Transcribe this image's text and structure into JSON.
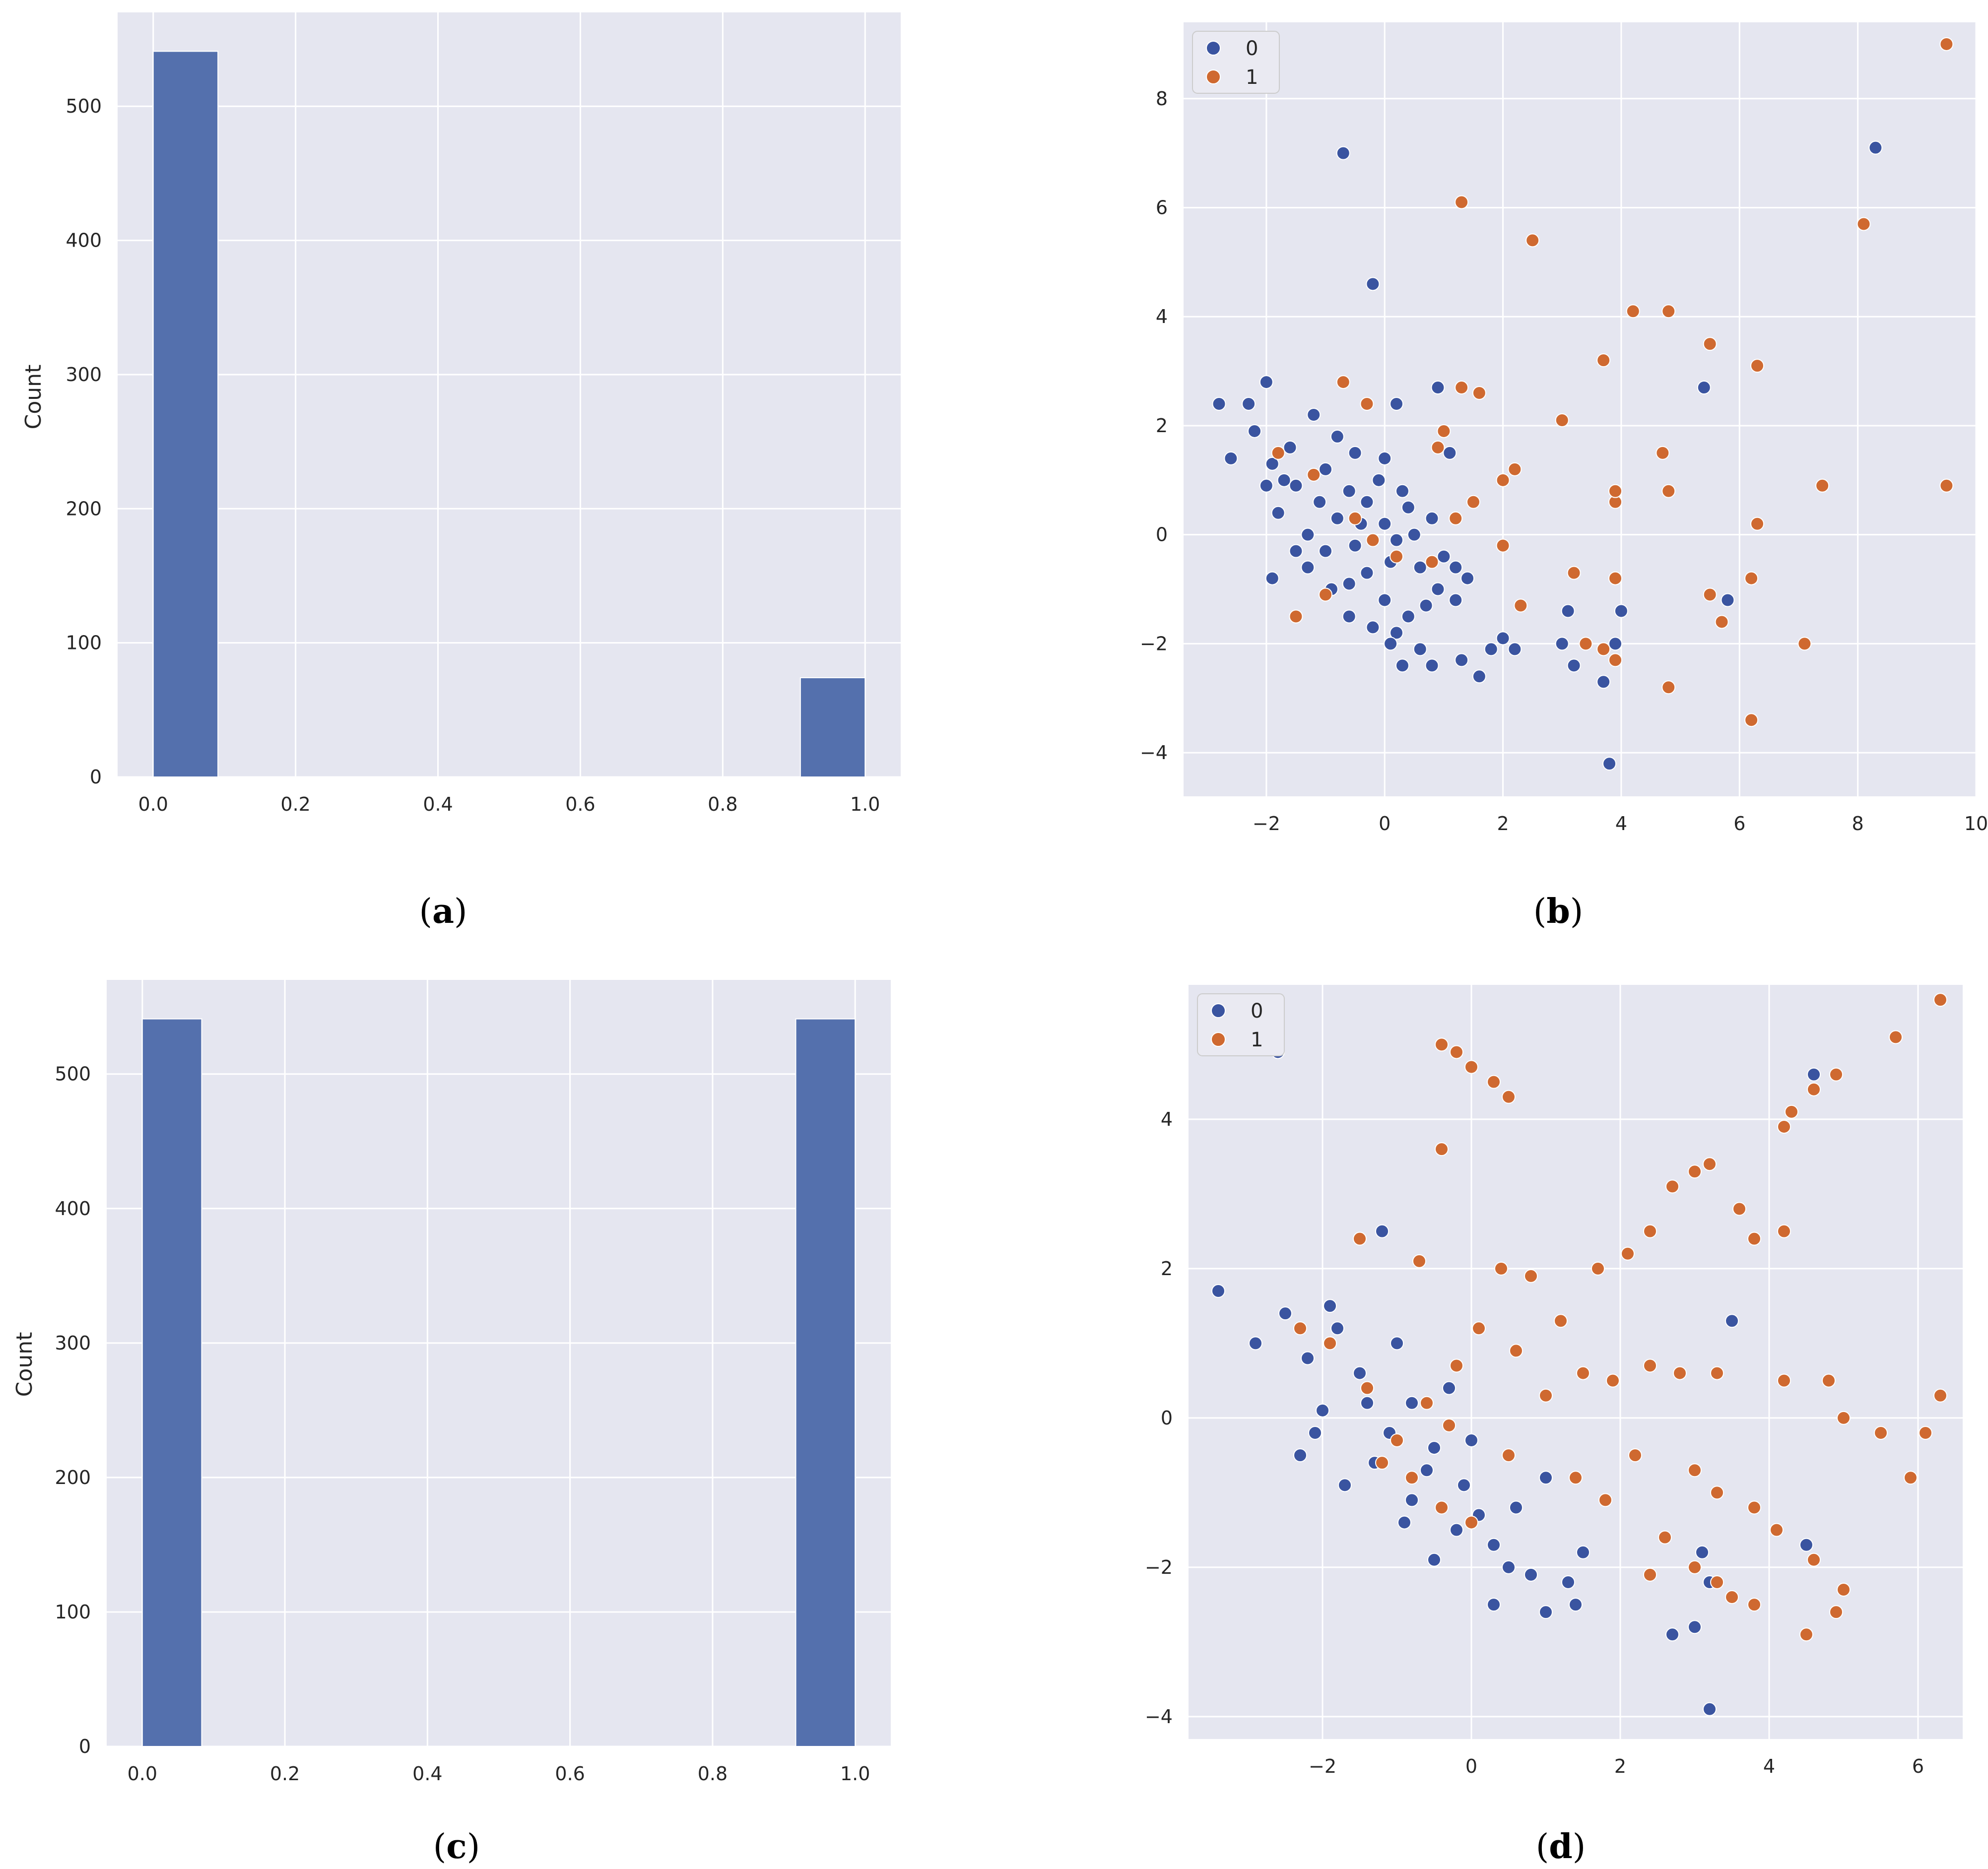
{
  "colors": {
    "axes_background": "#e5e6f0",
    "grid": "#ffffff",
    "bar": "#5470ad",
    "class0": "#3a54a0",
    "class1": "#cf6930",
    "text": "#262626"
  },
  "chart_data": [
    {
      "type": "bar",
      "panel_label": "(a)",
      "ylabel": "Count",
      "xlabel": "",
      "xlim": [
        -0.05,
        1.05
      ],
      "ylim": [
        0,
        570
      ],
      "xticks": [
        "0.0",
        "0.2",
        "0.4",
        "0.6",
        "0.8",
        "1.0"
      ],
      "yticks": [
        "0",
        "100",
        "200",
        "300",
        "400",
        "500"
      ],
      "bins": [
        [
          0.0,
          0.0909
        ],
        [
          0.9091,
          1.0
        ]
      ],
      "values": [
        541,
        74
      ],
      "grid": true
    },
    {
      "type": "scatter",
      "panel_label": "(b)",
      "xlim": [
        -3.4,
        10.0
      ],
      "ylim": [
        -4.8,
        9.4
      ],
      "xticks": [
        "−2",
        "0",
        "2",
        "4",
        "6",
        "8",
        "10"
      ],
      "yticks": [
        "−4",
        "−2",
        "0",
        "2",
        "4",
        "6",
        "8"
      ],
      "legend": [
        "0",
        "1"
      ],
      "legend_position": "top-left",
      "grid": true,
      "series": [
        {
          "name": "0",
          "points": [
            [
              -2.8,
              2.4
            ],
            [
              -2.6,
              1.4
            ],
            [
              -2.3,
              2.4
            ],
            [
              -2.0,
              2.8
            ],
            [
              -2.2,
              1.9
            ],
            [
              -1.9,
              1.3
            ],
            [
              -1.8,
              0.4
            ],
            [
              -1.6,
              1.6
            ],
            [
              -1.5,
              0.9
            ],
            [
              -1.2,
              2.2
            ],
            [
              -1.0,
              1.2
            ],
            [
              -0.8,
              0.3
            ],
            [
              -0.6,
              0.8
            ],
            [
              -0.5,
              -0.2
            ],
            [
              -0.3,
              0.6
            ],
            [
              -0.1,
              1.0
            ],
            [
              0.0,
              0.2
            ],
            [
              0.2,
              -0.1
            ],
            [
              0.4,
              0.5
            ],
            [
              0.6,
              -0.6
            ],
            [
              0.8,
              0.3
            ],
            [
              0.9,
              -1.0
            ],
            [
              1.0,
              -0.4
            ],
            [
              1.2,
              -1.2
            ],
            [
              1.4,
              -0.8
            ],
            [
              -1.9,
              -0.8
            ],
            [
              -1.3,
              -0.6
            ],
            [
              -0.9,
              -1.0
            ],
            [
              -0.6,
              -1.5
            ],
            [
              -0.3,
              -0.7
            ],
            [
              0.0,
              -1.2
            ],
            [
              0.2,
              -1.8
            ],
            [
              0.4,
              -1.5
            ],
            [
              0.6,
              -2.1
            ],
            [
              0.8,
              -2.4
            ],
            [
              0.3,
              -2.4
            ],
            [
              1.3,
              -2.3
            ],
            [
              1.6,
              -2.6
            ],
            [
              1.8,
              -2.1
            ],
            [
              2.0,
              -1.9
            ],
            [
              2.2,
              -2.1
            ],
            [
              3.0,
              -2.0
            ],
            [
              3.2,
              -2.4
            ],
            [
              3.1,
              -1.4
            ],
            [
              3.7,
              -2.1
            ],
            [
              3.9,
              -2.0
            ],
            [
              3.7,
              -2.7
            ],
            [
              4.0,
              -1.4
            ],
            [
              3.8,
              -4.2
            ],
            [
              5.8,
              -1.2
            ],
            [
              5.4,
              2.7
            ],
            [
              8.3,
              7.1
            ],
            [
              -0.7,
              7.0
            ],
            [
              -0.2,
              4.6
            ],
            [
              -0.5,
              1.5
            ],
            [
              0.2,
              2.4
            ],
            [
              0.9,
              2.7
            ],
            [
              1.1,
              1.5
            ],
            [
              -1.3,
              0.0
            ],
            [
              -1.0,
              -0.3
            ],
            [
              -0.4,
              0.2
            ],
            [
              0.1,
              -0.5
            ],
            [
              0.5,
              0.0
            ],
            [
              -1.7,
              1.0
            ],
            [
              -0.8,
              1.8
            ],
            [
              0.0,
              1.4
            ],
            [
              -2.0,
              0.9
            ],
            [
              -1.5,
              -0.3
            ],
            [
              -0.2,
              -1.7
            ],
            [
              0.7,
              -1.3
            ],
            [
              1.2,
              -0.6
            ],
            [
              -1.1,
              0.6
            ],
            [
              0.3,
              0.8
            ],
            [
              -0.6,
              -0.9
            ],
            [
              0.1,
              -2.0
            ]
          ]
        },
        {
          "name": "1",
          "points": [
            [
              9.5,
              9.0
            ],
            [
              8.1,
              5.7
            ],
            [
              1.3,
              6.1
            ],
            [
              2.5,
              5.4
            ],
            [
              4.8,
              4.1
            ],
            [
              4.2,
              4.1
            ],
            [
              3.7,
              3.2
            ],
            [
              5.5,
              3.5
            ],
            [
              6.3,
              3.1
            ],
            [
              -0.7,
              2.8
            ],
            [
              1.3,
              2.7
            ],
            [
              1.6,
              2.6
            ],
            [
              3.0,
              2.1
            ],
            [
              4.7,
              1.5
            ],
            [
              4.8,
              0.8
            ],
            [
              3.9,
              0.6
            ],
            [
              3.9,
              0.8
            ],
            [
              2.2,
              1.2
            ],
            [
              2.0,
              1.0
            ],
            [
              7.4,
              0.9
            ],
            [
              9.5,
              0.9
            ],
            [
              6.3,
              0.2
            ],
            [
              2.0,
              -0.2
            ],
            [
              3.2,
              -0.7
            ],
            [
              3.9,
              -0.8
            ],
            [
              6.2,
              -0.8
            ],
            [
              5.5,
              -1.1
            ],
            [
              5.7,
              -1.6
            ],
            [
              2.3,
              -1.3
            ],
            [
              3.4,
              -2.0
            ],
            [
              3.7,
              -2.1
            ],
            [
              3.9,
              -2.3
            ],
            [
              7.1,
              -2.0
            ],
            [
              4.8,
              -2.8
            ],
            [
              6.2,
              -3.4
            ],
            [
              -1.5,
              -1.5
            ],
            [
              -1.0,
              -1.1
            ],
            [
              -0.2,
              -0.1
            ],
            [
              0.8,
              -0.5
            ],
            [
              1.2,
              0.3
            ],
            [
              1.5,
              0.6
            ],
            [
              -0.3,
              2.4
            ],
            [
              0.9,
              1.6
            ],
            [
              -1.2,
              1.1
            ],
            [
              -0.5,
              0.3
            ],
            [
              0.2,
              -0.4
            ],
            [
              1.0,
              1.9
            ],
            [
              -1.8,
              1.5
            ]
          ]
        }
      ]
    },
    {
      "type": "bar",
      "panel_label": "(c)",
      "ylabel": "Count",
      "xlabel": "",
      "xlim": [
        -0.05,
        1.05
      ],
      "ylim": [
        0,
        570
      ],
      "xticks": [
        "0.0",
        "0.2",
        "0.4",
        "0.6",
        "0.8",
        "1.0"
      ],
      "yticks": [
        "0",
        "100",
        "200",
        "300",
        "400",
        "500"
      ],
      "bins": [
        [
          0.0,
          0.0833
        ],
        [
          0.9167,
          1.0
        ]
      ],
      "values": [
        541,
        541
      ],
      "grid": true
    },
    {
      "type": "scatter",
      "panel_label": "(d)",
      "xlim": [
        -3.8,
        6.6
      ],
      "ylim": [
        -4.3,
        5.8
      ],
      "xticks": [
        "−2",
        "0",
        "2",
        "4",
        "6"
      ],
      "yticks": [
        "−4",
        "−2",
        "0",
        "2",
        "4"
      ],
      "legend": [
        "0",
        "1"
      ],
      "legend_position": "top-left",
      "grid": true,
      "series": [
        {
          "name": "0",
          "points": [
            [
              -3.4,
              1.7
            ],
            [
              -2.6,
              4.9
            ],
            [
              -2.9,
              1.0
            ],
            [
              -2.5,
              1.4
            ],
            [
              -2.2,
              0.8
            ],
            [
              -2.0,
              0.1
            ],
            [
              -1.8,
              1.2
            ],
            [
              -1.5,
              0.6
            ],
            [
              -1.2,
              2.5
            ],
            [
              -1.0,
              1.0
            ],
            [
              -0.8,
              0.2
            ],
            [
              -0.5,
              -0.4
            ],
            [
              -0.3,
              0.4
            ],
            [
              -0.1,
              -0.9
            ],
            [
              0.1,
              -1.3
            ],
            [
              0.3,
              -1.7
            ],
            [
              0.5,
              -2.0
            ],
            [
              0.8,
              -2.1
            ],
            [
              1.0,
              -2.6
            ],
            [
              1.3,
              -2.2
            ],
            [
              1.5,
              -1.8
            ],
            [
              1.4,
              -2.5
            ],
            [
              0.3,
              -2.5
            ],
            [
              -0.2,
              -1.5
            ],
            [
              -0.8,
              -1.1
            ],
            [
              -1.3,
              -0.6
            ],
            [
              -1.7,
              -0.9
            ],
            [
              -2.3,
              -0.5
            ],
            [
              2.7,
              -2.9
            ],
            [
              3.0,
              -2.8
            ],
            [
              3.2,
              -3.9
            ],
            [
              3.2,
              -2.2
            ],
            [
              3.1,
              -1.8
            ],
            [
              3.5,
              1.3
            ],
            [
              4.6,
              4.6
            ],
            [
              4.5,
              -1.7
            ],
            [
              1.0,
              -0.8
            ],
            [
              0.6,
              -1.2
            ],
            [
              -0.5,
              -1.9
            ],
            [
              -1.9,
              1.5
            ],
            [
              -1.1,
              -0.2
            ],
            [
              -0.6,
              -0.7
            ],
            [
              0.0,
              -0.3
            ],
            [
              -2.1,
              -0.2
            ],
            [
              -1.4,
              0.2
            ],
            [
              -0.9,
              -1.4
            ]
          ]
        },
        {
          "name": "1",
          "points": [
            [
              -0.4,
              5.0
            ],
            [
              -0.2,
              4.9
            ],
            [
              0.0,
              4.7
            ],
            [
              0.3,
              4.5
            ],
            [
              0.5,
              4.3
            ],
            [
              -0.4,
              3.6
            ],
            [
              6.3,
              5.6
            ],
            [
              5.7,
              5.1
            ],
            [
              4.9,
              4.6
            ],
            [
              4.6,
              4.4
            ],
            [
              4.3,
              4.1
            ],
            [
              4.2,
              3.9
            ],
            [
              3.2,
              3.4
            ],
            [
              3.0,
              3.3
            ],
            [
              2.7,
              3.1
            ],
            [
              3.6,
              2.8
            ],
            [
              3.8,
              2.4
            ],
            [
              4.2,
              2.5
            ],
            [
              2.4,
              2.5
            ],
            [
              2.1,
              2.2
            ],
            [
              1.7,
              2.0
            ],
            [
              -1.5,
              2.4
            ],
            [
              -0.7,
              2.1
            ],
            [
              0.4,
              2.0
            ],
            [
              0.8,
              1.9
            ],
            [
              1.2,
              1.3
            ],
            [
              1.5,
              0.6
            ],
            [
              1.9,
              0.5
            ],
            [
              2.4,
              0.7
            ],
            [
              2.8,
              0.6
            ],
            [
              3.3,
              0.6
            ],
            [
              4.2,
              0.5
            ],
            [
              4.8,
              0.5
            ],
            [
              5.0,
              0.0
            ],
            [
              5.5,
              -0.2
            ],
            [
              5.9,
              -0.8
            ],
            [
              6.1,
              -0.2
            ],
            [
              6.3,
              0.3
            ],
            [
              3.0,
              -0.7
            ],
            [
              3.3,
              -1.0
            ],
            [
              3.8,
              -1.2
            ],
            [
              4.1,
              -1.5
            ],
            [
              4.6,
              -1.9
            ],
            [
              5.0,
              -2.3
            ],
            [
              4.5,
              -2.9
            ],
            [
              4.9,
              -2.6
            ],
            [
              3.5,
              -2.4
            ],
            [
              3.8,
              -2.5
            ],
            [
              2.2,
              -0.5
            ],
            [
              2.6,
              -1.6
            ],
            [
              3.0,
              -2.0
            ],
            [
              3.3,
              -2.2
            ],
            [
              2.4,
              -2.1
            ],
            [
              -1.2,
              -0.6
            ],
            [
              -1.0,
              -0.3
            ],
            [
              -0.6,
              0.2
            ],
            [
              -0.2,
              0.7
            ],
            [
              0.1,
              1.2
            ],
            [
              -0.8,
              -0.8
            ],
            [
              -0.4,
              -1.2
            ],
            [
              0.0,
              -1.4
            ],
            [
              -2.3,
              1.2
            ],
            [
              -1.9,
              1.0
            ],
            [
              0.6,
              0.9
            ],
            [
              1.0,
              0.3
            ],
            [
              -0.3,
              -0.1
            ],
            [
              1.4,
              -0.8
            ],
            [
              1.8,
              -1.1
            ],
            [
              0.5,
              -0.5
            ],
            [
              -1.4,
              0.4
            ]
          ]
        }
      ]
    }
  ]
}
